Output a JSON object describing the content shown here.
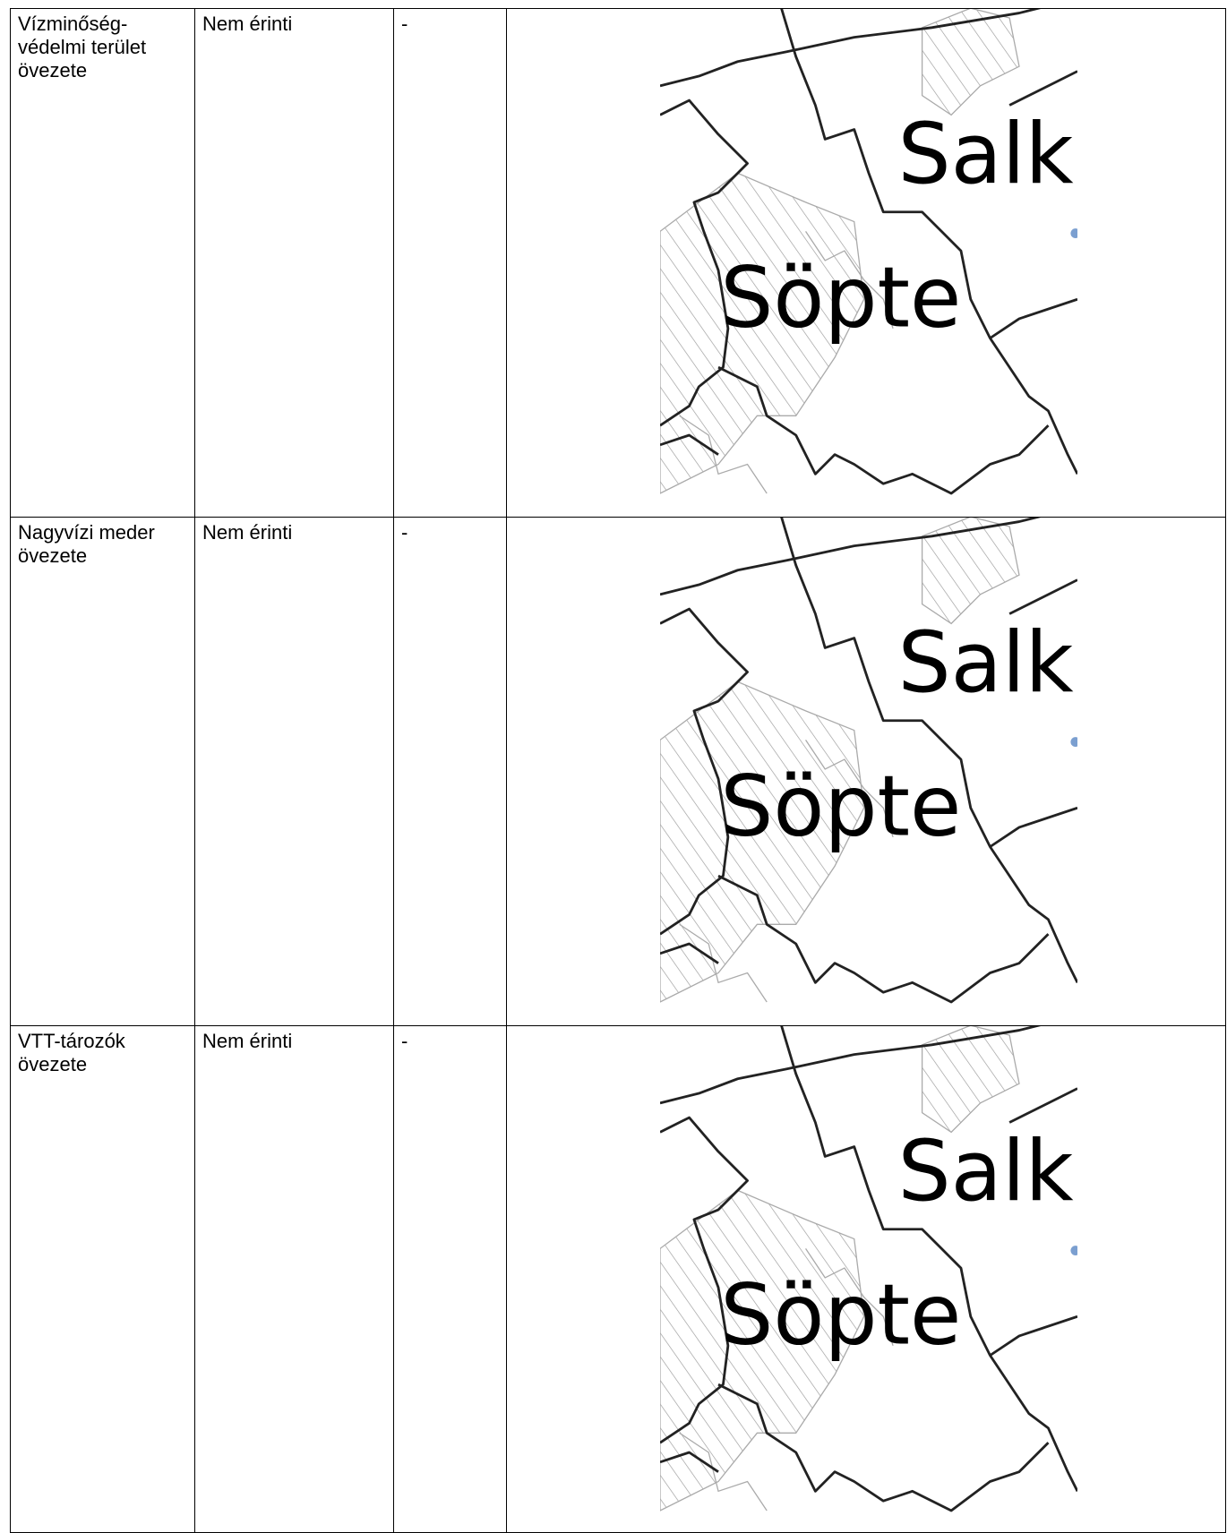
{
  "table": {
    "rows": [
      [
        "Vízminőség-védelmi terület övezete",
        "Nem érinti",
        "-",
        ""
      ],
      [
        "Nagyvízi meder övezete",
        "Nem érinti",
        "-",
        ""
      ],
      [
        "VTT-tározók övezete",
        "Nem érinti",
        "-",
        ""
      ]
    ]
  },
  "map": {
    "labels": [
      "Salk",
      "Söpte"
    ]
  }
}
